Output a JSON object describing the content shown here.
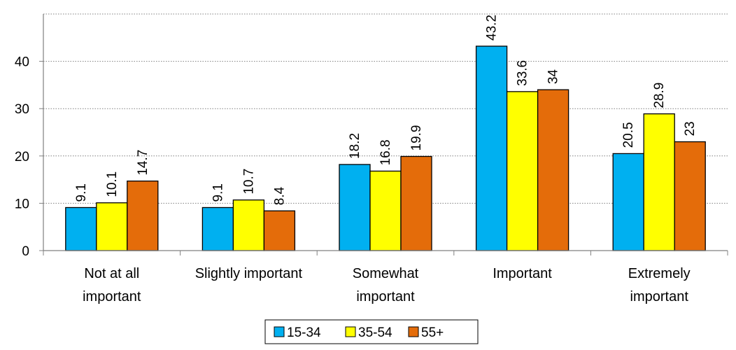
{
  "chart_data": {
    "type": "bar",
    "categories": [
      [
        "Not at all",
        "important"
      ],
      [
        "Slightly important"
      ],
      [
        "Somewhat",
        "important"
      ],
      [
        "Important"
      ],
      [
        "Extremely",
        "important"
      ]
    ],
    "series": [
      {
        "name": "15-34",
        "color": "#00B0F0",
        "values": [
          9.1,
          9.1,
          18.2,
          43.2,
          20.5
        ]
      },
      {
        "name": "35-54",
        "color": "#FFFF00",
        "values": [
          10.1,
          10.7,
          16.8,
          33.6,
          28.9
        ]
      },
      {
        "name": "55+",
        "color": "#E46C0A",
        "values": [
          14.7,
          8.4,
          19.9,
          34,
          23
        ]
      }
    ],
    "yticks": [
      0,
      10,
      20,
      30,
      40
    ],
    "ylim": [
      0,
      50
    ],
    "grid": "horizontal-dotted",
    "legend": "bottom-center"
  }
}
